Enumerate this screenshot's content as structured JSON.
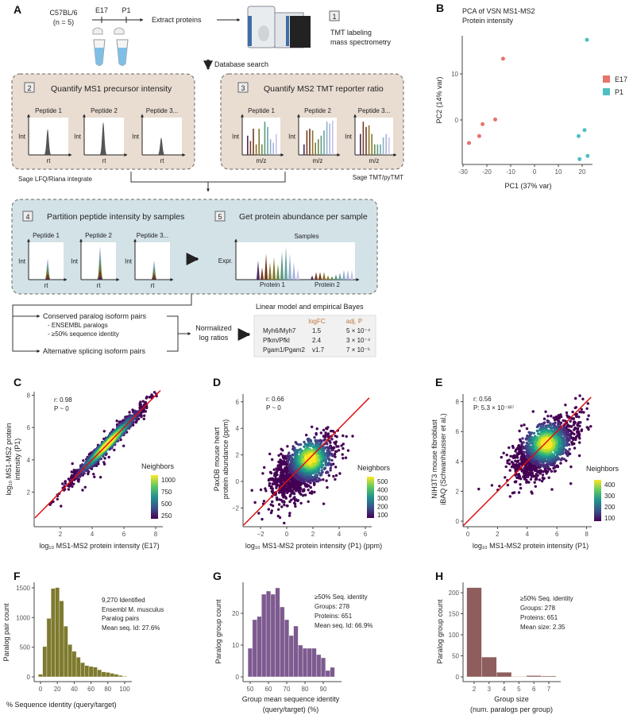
{
  "panels": {
    "A": "A",
    "B": "B",
    "C": "C",
    "D": "D",
    "E": "E",
    "F": "F",
    "G": "G",
    "H": "H"
  },
  "workflow": {
    "strain": "C57BL/6",
    "n": "(n = 5)",
    "timepoints": [
      "E17",
      "P1"
    ],
    "extract": "Extract proteins",
    "step1_num": "1",
    "step1_line1": "TMT labeling",
    "step1_line2": "mass spectrometry",
    "db_search": "Database search",
    "step2_num": "2",
    "step2_title": "Quantify MS1 precursor intensity",
    "step3_num": "3",
    "step3_title": "Quantify MS2 TMT reporter ratio",
    "peptides": [
      "Peptide 1",
      "Peptide 2",
      "Peptide 3..."
    ],
    "int_label": "Int",
    "rt_label": "rt",
    "mz_label": "m/z",
    "tool2": "Sage LFQ/Riana integrate",
    "tool3": "Sage TMT/pyTMT",
    "step4_num": "4",
    "step4_title": "Partition peptide intensity by samples",
    "step5_num": "5",
    "step5_title": "Get protein abundance per sample",
    "samples": "Samples",
    "expr": "Expr.",
    "proteins": [
      "Protein 1",
      "Protein 2"
    ],
    "conserved": "Conserved paralog isoform pairs",
    "ensembl": "- ENSEMBL paralogs",
    "seqid": "- ≥50% sequence identity",
    "altsplice": "Alternative splicing isoform pairs",
    "normalized1": "Normalized",
    "normalized2": "log ratios",
    "model_title": "Linear model and empirical Bayes",
    "table": {
      "headers": [
        "",
        "logFC",
        "adj. P"
      ],
      "rows": [
        [
          "Myh6/Myh7",
          "1.5",
          "5 × 10⁻⁴"
        ],
        [
          "Pfkm/Pfkl",
          "2.4",
          "3 × 10⁻⁴"
        ],
        [
          "Pgam1/Pgam2",
          "v1.7",
          "7 × 10⁻⁵"
        ]
      ]
    },
    "colors": {
      "box23": "#e9dcd1",
      "box45": "#d3e2e7",
      "header_accent": "#c0763c"
    }
  },
  "chart_data": [
    {
      "id": "B",
      "type": "scatter",
      "title": [
        "PCA of VSN MS1-MS2",
        "Protein intensity"
      ],
      "xlabel": "PC1 (37% var)",
      "ylabel": "PC2 (14% var)",
      "xticks": [
        "-30",
        "-20",
        "-10",
        "0",
        "10",
        "20"
      ],
      "yticks": [
        "0",
        "10"
      ],
      "xlim": [
        -30,
        25
      ],
      "ylim": [
        -10,
        19
      ],
      "legend_position": "right",
      "series": [
        {
          "name": "E17",
          "color": "#e8736b",
          "points": [
            [
              -27.5,
              -5.0
            ],
            [
              -23.2,
              -3.5
            ],
            [
              -21.8,
              -0.9
            ],
            [
              -16.5,
              0.1
            ],
            [
              -13.2,
              13.3
            ]
          ]
        },
        {
          "name": "P1",
          "color": "#4fbfc3",
          "points": [
            [
              22.0,
              17.4
            ],
            [
              21.0,
              -2.2
            ],
            [
              18.5,
              -3.5
            ],
            [
              18.9,
              -8.5
            ],
            [
              22.3,
              -7.8
            ]
          ]
        }
      ]
    },
    {
      "id": "C",
      "type": "scatter",
      "xlabel": "log₁₀ MS1-MS2 protein intensity (E17)",
      "ylabel": [
        "log₁₀ MS1-MS2 protein",
        "intensity (P1)"
      ],
      "xticks": [
        "2",
        "4",
        "6",
        "8"
      ],
      "yticks": [
        "2",
        "4",
        "6",
        "8"
      ],
      "xlim": [
        0.4,
        8.5
      ],
      "ylim": [
        0.1,
        8.3
      ],
      "stats": {
        "r": "r: 0.98",
        "p": "P ~ 0"
      },
      "legend_title": "Neighbors",
      "colorbar_ticks": [
        "1000",
        "750",
        "500",
        "250"
      ],
      "identity_line": true
    },
    {
      "id": "D",
      "type": "scatter",
      "xlabel": "log₁₀ MS1-MS2 protein intensity (P1) (ppm)",
      "ylabel": [
        "PaxDB mouse heart",
        "protein abundance (ppm)"
      ],
      "xticks": [
        "−2",
        "0",
        "2",
        "4",
        "6"
      ],
      "yticks": [
        "−2",
        "0",
        "2",
        "4",
        "6"
      ],
      "xlim": [
        -3.3,
        6.5
      ],
      "ylim": [
        -3.4,
        6.3
      ],
      "stats": {
        "r": "r: 0.66",
        "p": "P ~ 0"
      },
      "legend_title": "Neighbors",
      "colorbar_ticks": [
        "500",
        "400",
        "300",
        "200",
        "100"
      ],
      "identity_line": true
    },
    {
      "id": "E",
      "type": "scatter",
      "xlabel": "log₁₀ MS1-MS2 protein intensity (P1)",
      "ylabel": [
        "NIH3T3 mouse fibroblast",
        "iBAQ (Schwanhäusser et al.)"
      ],
      "xticks": [
        "0",
        "2",
        "4",
        "6",
        "8"
      ],
      "yticks": [
        "0",
        "2",
        "4",
        "6",
        "8"
      ],
      "xlim": [
        -0.3,
        8.4
      ],
      "ylim": [
        -0.3,
        8.3
      ],
      "stats": {
        "r": "r: 0.56",
        "p": "P: 5.3 × 10⁻²²⁷"
      },
      "legend_title": "Neighbors",
      "colorbar_ticks": [
        "400",
        "300",
        "200",
        "100"
      ],
      "identity_line": true
    },
    {
      "id": "F",
      "type": "bar",
      "xlabel": "% Sequence identity (query/target)",
      "ylabel": "Paralog pair count",
      "xticks": [
        "0",
        "20",
        "40",
        "60",
        "80",
        "100"
      ],
      "yticks": [
        "0",
        "500",
        "1000",
        "1500"
      ],
      "xlim": [
        -5,
        105
      ],
      "ylim": [
        0,
        1550
      ],
      "bin_width": 5,
      "color": "#7e7a2f",
      "bins": [
        0,
        5,
        10,
        15,
        20,
        25,
        30,
        35,
        40,
        45,
        50,
        55,
        60,
        65,
        70,
        75,
        80,
        85,
        90,
        95,
        100
      ],
      "values": [
        45,
        510,
        985,
        1490,
        1505,
        1280,
        855,
        545,
        430,
        330,
        240,
        190,
        175,
        165,
        120,
        85,
        75,
        60,
        45,
        25,
        10
      ],
      "annotation": [
        "9,270 Identified",
        "Ensembl M. musculus",
        "Paralog pairs",
        "Mean seq. Id: 27.6%"
      ]
    },
    {
      "id": "G",
      "type": "bar",
      "xlabel": [
        "Group mean sequence identity",
        "(query/target) (%)"
      ],
      "ylabel": "Paralog group count",
      "xticks": [
        "50",
        "60",
        "70",
        "80",
        "90"
      ],
      "yticks": [
        "0",
        "10",
        "20"
      ],
      "xlim": [
        47,
        98
      ],
      "ylim": [
        0,
        29
      ],
      "bin_width": 2.5,
      "color": "#7d5a91",
      "bins": [
        50,
        52.5,
        55,
        57.5,
        60,
        62.5,
        65,
        67.5,
        70,
        72.5,
        75,
        77.5,
        80,
        82.5,
        85,
        87.5,
        90,
        92.5,
        95
      ],
      "values": [
        9,
        18,
        19,
        26,
        27,
        26,
        28,
        22,
        18,
        13,
        16,
        10,
        9,
        9,
        9,
        7,
        6,
        2,
        3
      ],
      "annotation": [
        "≥50% Seq. identity",
        "Groups: 278",
        "Proteins: 651",
        "Mean seq. Id: 66.9%"
      ]
    },
    {
      "id": "H",
      "type": "bar",
      "xlabel": [
        "Group size",
        "(num. paralogs per group)"
      ],
      "ylabel": "Paralog group count",
      "xticks": [
        "2",
        "3",
        "4",
        "5",
        "6",
        "7"
      ],
      "yticks": [
        "0",
        "50",
        "100",
        "150",
        "200"
      ],
      "xlim": [
        1.5,
        7.6
      ],
      "ylim": [
        0,
        220
      ],
      "bin_width": 1,
      "color": "#8e5e5e",
      "bins": [
        2,
        3,
        4,
        5,
        6,
        7
      ],
      "values": [
        212,
        47,
        11,
        1,
        3,
        2
      ],
      "annotation": [
        "≥50% Seq. identity",
        "Groups: 278",
        "Proteins: 651",
        "Mean size: 2.35"
      ]
    }
  ]
}
